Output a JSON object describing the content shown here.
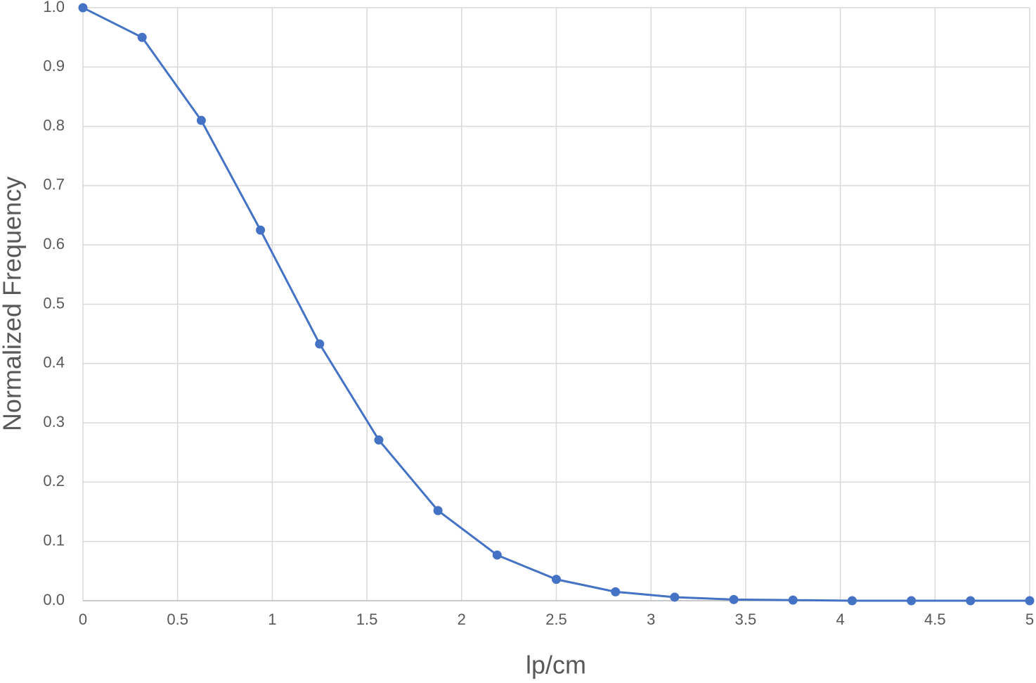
{
  "chart_data": {
    "type": "line",
    "x_label": "lp/cm",
    "y_label": "Normalized Frequency",
    "x": [
      0,
      0.3125,
      0.625,
      0.9375,
      1.25,
      1.5625,
      1.875,
      2.1875,
      2.5,
      2.8125,
      3.125,
      3.4375,
      3.75,
      4.0625,
      4.375,
      4.6875,
      5
    ],
    "series": [
      {
        "name": "Normalized Frequency",
        "color": "#4472c4",
        "values": [
          1.0,
          0.95,
          0.81,
          0.625,
          0.433,
          0.271,
          0.152,
          0.077,
          0.036,
          0.015,
          0.006,
          0.002,
          0.001,
          0.0,
          0.0,
          0.0,
          0.0
        ]
      }
    ],
    "xlim": [
      0,
      5
    ],
    "xticks": [
      0,
      0.5,
      1,
      1.5,
      2,
      2.5,
      3,
      3.5,
      4,
      4.5,
      5
    ],
    "ylim": [
      0,
      1
    ],
    "yticks": [
      {
        "value": 0,
        "label": "0.0"
      },
      0.1,
      0.2,
      0.3,
      0.4,
      0.5,
      0.6,
      0.7,
      0.8,
      0.9,
      {
        "value": 1,
        "label": "1.0"
      }
    ],
    "grid": true
  }
}
